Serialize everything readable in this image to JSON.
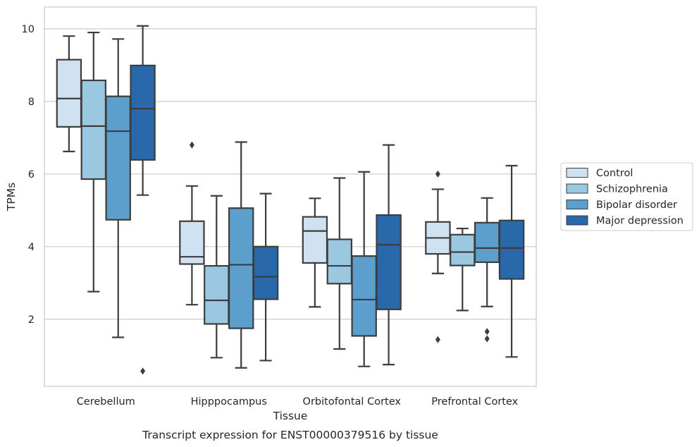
{
  "chart_data": {
    "type": "box",
    "xlabel": "Tissue",
    "ylabel": "TPMs",
    "caption": "Transcript expression for ENST00000379516 by tissue",
    "ylim": [
      0.15,
      10.6
    ],
    "yticks": [
      2,
      4,
      6,
      8,
      10
    ],
    "grid": true,
    "legend_position": "right",
    "categories": [
      "Cerebellum",
      "Hipppocampus",
      "Orbitofontal Cortex",
      "Prefrontal Cortex"
    ],
    "series": [
      {
        "name": "Control",
        "color": "#d0e2f2",
        "boxes": [
          {
            "whislo": 6.62,
            "q1": 7.3,
            "med": 8.08,
            "q3": 9.15,
            "whishi": 9.8,
            "fliers": []
          },
          {
            "whislo": 2.4,
            "q1": 3.52,
            "med": 3.72,
            "q3": 4.7,
            "whishi": 5.67,
            "fliers": [
              6.8
            ]
          },
          {
            "whislo": 2.34,
            "q1": 3.55,
            "med": 4.43,
            "q3": 4.82,
            "whishi": 5.33,
            "fliers": []
          },
          {
            "whislo": 3.26,
            "q1": 3.8,
            "med": 4.24,
            "q3": 4.68,
            "whishi": 5.58,
            "fliers": [
              6.0,
              1.44
            ]
          }
        ]
      },
      {
        "name": "Schizophrenia",
        "color": "#9ac8e0",
        "boxes": [
          {
            "whislo": 2.76,
            "q1": 5.86,
            "med": 7.32,
            "q3": 8.58,
            "whishi": 9.9,
            "fliers": []
          },
          {
            "whislo": 0.94,
            "q1": 1.87,
            "med": 2.52,
            "q3": 3.47,
            "whishi": 5.4,
            "fliers": []
          },
          {
            "whislo": 1.18,
            "q1": 2.98,
            "med": 3.47,
            "q3": 4.2,
            "whishi": 5.89,
            "fliers": []
          },
          {
            "whislo": 2.24,
            "q1": 3.48,
            "med": 3.85,
            "q3": 4.33,
            "whishi": 4.5,
            "fliers": []
          }
        ]
      },
      {
        "name": "Bipolar disorder",
        "color": "#5c9fcd",
        "boxes": [
          {
            "whislo": 1.5,
            "q1": 4.74,
            "med": 7.18,
            "q3": 8.14,
            "whishi": 9.72,
            "fliers": []
          },
          {
            "whislo": 0.66,
            "q1": 1.75,
            "med": 3.5,
            "q3": 5.06,
            "whishi": 6.88,
            "fliers": []
          },
          {
            "whislo": 0.7,
            "q1": 1.54,
            "med": 2.54,
            "q3": 3.74,
            "whishi": 6.06,
            "fliers": []
          },
          {
            "whislo": 2.35,
            "q1": 3.57,
            "med": 3.96,
            "q3": 4.66,
            "whishi": 5.34,
            "fliers": [
              1.66,
              1.46
            ]
          }
        ]
      },
      {
        "name": "Major depression",
        "color": "#2868ab",
        "boxes": [
          {
            "whislo": 5.42,
            "q1": 6.39,
            "med": 7.8,
            "q3": 8.99,
            "whishi": 10.08,
            "fliers": [
              0.57
            ]
          },
          {
            "whislo": 0.86,
            "q1": 2.55,
            "med": 3.17,
            "q3": 4.0,
            "whishi": 5.46,
            "fliers": []
          },
          {
            "whislo": 0.75,
            "q1": 2.27,
            "med": 4.05,
            "q3": 4.87,
            "whishi": 6.8,
            "fliers": []
          },
          {
            "whislo": 0.96,
            "q1": 3.11,
            "med": 3.96,
            "q3": 4.72,
            "whishi": 6.23,
            "fliers": []
          }
        ]
      }
    ]
  }
}
